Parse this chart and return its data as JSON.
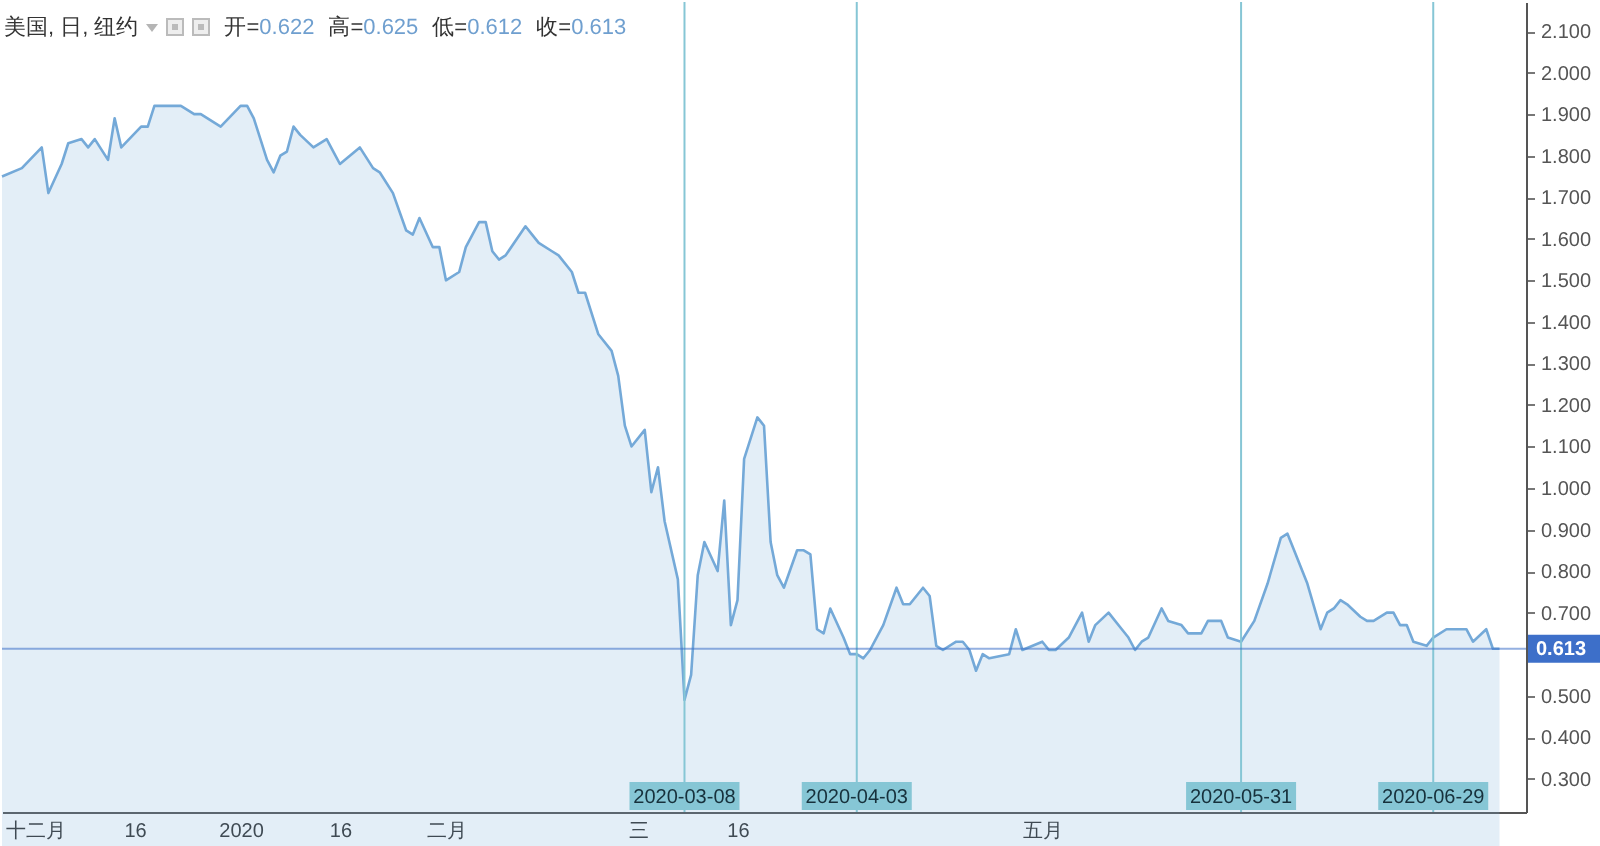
{
  "chart_data": {
    "type": "area",
    "title": "美国, 日, 纽约",
    "annotations": [
      "开=0.622",
      "高=0.625",
      "低=0.612",
      "收=0.613"
    ],
    "x": [
      "2019-11-26",
      "2019-11-29",
      "2019-12-02",
      "2019-12-03",
      "2019-12-05",
      "2019-12-06",
      "2019-12-08",
      "2019-12-09",
      "2019-12-10",
      "2019-12-12",
      "2019-12-13",
      "2019-12-14",
      "2019-12-17",
      "2019-12-18",
      "2019-12-19",
      "2019-12-21",
      "2019-12-23",
      "2019-12-25",
      "2019-12-26",
      "2019-12-29",
      "2020-01-01",
      "2020-01-02",
      "2020-01-03",
      "2020-01-05",
      "2020-01-06",
      "2020-01-07",
      "2020-01-08",
      "2020-01-09",
      "2020-01-10",
      "2020-01-12",
      "2020-01-14",
      "2020-01-15",
      "2020-01-16",
      "2020-01-19",
      "2020-01-21",
      "2020-01-22",
      "2020-01-24",
      "2020-01-26",
      "2020-01-27",
      "2020-01-28",
      "2020-01-30",
      "2020-01-31",
      "2020-02-01",
      "2020-02-03",
      "2020-02-04",
      "2020-02-06",
      "2020-02-07",
      "2020-02-08",
      "2020-02-09",
      "2020-02-10",
      "2020-02-13",
      "2020-02-14",
      "2020-02-15",
      "2020-02-17",
      "2020-02-18",
      "2020-02-20",
      "2020-02-21",
      "2020-02-22",
      "2020-02-24",
      "2020-02-26",
      "2020-02-27",
      "2020-02-28",
      "2020-02-29",
      "2020-03-02",
      "2020-03-03",
      "2020-03-04",
      "2020-03-05",
      "2020-03-07",
      "2020-03-08",
      "2020-03-09",
      "2020-03-10",
      "2020-03-11",
      "2020-03-13",
      "2020-03-14",
      "2020-03-15",
      "2020-03-16",
      "2020-03-17",
      "2020-03-19",
      "2020-03-20",
      "2020-03-21",
      "2020-03-22",
      "2020-03-23",
      "2020-03-25",
      "2020-03-26",
      "2020-03-27",
      "2020-03-28",
      "2020-03-29",
      "2020-03-30",
      "2020-04-01",
      "2020-04-02",
      "2020-04-03",
      "2020-04-04",
      "2020-04-05",
      "2020-04-07",
      "2020-04-09",
      "2020-04-10",
      "2020-04-11",
      "2020-04-13",
      "2020-04-14",
      "2020-04-15",
      "2020-04-16",
      "2020-04-18",
      "2020-04-19",
      "2020-04-20",
      "2020-04-21",
      "2020-04-22",
      "2020-04-23",
      "2020-04-26",
      "2020-04-27",
      "2020-04-28",
      "2020-05-01",
      "2020-05-02",
      "2020-05-03",
      "2020-05-05",
      "2020-05-07",
      "2020-05-08",
      "2020-05-09",
      "2020-05-11",
      "2020-05-13",
      "2020-05-14",
      "2020-05-15",
      "2020-05-16",
      "2020-05-17",
      "2020-05-19",
      "2020-05-20",
      "2020-05-22",
      "2020-05-23",
      "2020-05-25",
      "2020-05-26",
      "2020-05-28",
      "2020-05-29",
      "2020-05-31",
      "2020-06-02",
      "2020-06-04",
      "2020-06-06",
      "2020-06-07",
      "2020-06-08",
      "2020-06-10",
      "2020-06-12",
      "2020-06-13",
      "2020-06-14",
      "2020-06-15",
      "2020-06-16",
      "2020-06-18",
      "2020-06-19",
      "2020-06-20",
      "2020-06-22",
      "2020-06-23",
      "2020-06-24",
      "2020-06-25",
      "2020-06-26",
      "2020-06-28",
      "2020-06-29",
      "2020-07-01",
      "2020-07-02",
      "2020-07-04",
      "2020-07-05",
      "2020-07-07",
      "2020-07-08",
      "2020-07-09"
    ],
    "series": [
      {
        "color": "#74a9d8",
        "values": [
          1.75,
          1.77,
          1.82,
          1.71,
          1.78,
          1.83,
          1.84,
          1.82,
          1.84,
          1.79,
          1.89,
          1.82,
          1.87,
          1.87,
          1.92,
          1.92,
          1.92,
          1.9,
          1.9,
          1.87,
          1.92,
          1.92,
          1.89,
          1.79,
          1.76,
          1.8,
          1.81,
          1.87,
          1.85,
          1.82,
          1.84,
          1.81,
          1.78,
          1.82,
          1.77,
          1.76,
          1.71,
          1.62,
          1.61,
          1.65,
          1.58,
          1.58,
          1.5,
          1.52,
          1.58,
          1.64,
          1.64,
          1.57,
          1.55,
          1.56,
          1.63,
          1.61,
          1.59,
          1.57,
          1.56,
          1.52,
          1.47,
          1.47,
          1.37,
          1.33,
          1.27,
          1.15,
          1.1,
          1.14,
          0.99,
          1.05,
          0.92,
          0.78,
          0.49,
          0.55,
          0.79,
          0.87,
          0.8,
          0.97,
          0.67,
          0.73,
          1.07,
          1.17,
          1.15,
          0.87,
          0.79,
          0.76,
          0.85,
          0.85,
          0.84,
          0.66,
          0.65,
          0.71,
          0.64,
          0.6,
          0.6,
          0.59,
          0.61,
          0.67,
          0.76,
          0.72,
          0.72,
          0.76,
          0.74,
          0.62,
          0.61,
          0.63,
          0.63,
          0.61,
          0.56,
          0.6,
          0.59,
          0.6,
          0.66,
          0.61,
          0.63,
          0.61,
          0.61,
          0.64,
          0.7,
          0.63,
          0.67,
          0.7,
          0.66,
          0.64,
          0.61,
          0.63,
          0.64,
          0.71,
          0.68,
          0.67,
          0.65,
          0.65,
          0.68,
          0.68,
          0.64,
          0.63,
          0.68,
          0.77,
          0.88,
          0.89,
          0.85,
          0.77,
          0.66,
          0.7,
          0.71,
          0.73,
          0.72,
          0.69,
          0.68,
          0.68,
          0.7,
          0.7,
          0.67,
          0.67,
          0.63,
          0.62,
          0.64,
          0.66,
          0.66,
          0.66,
          0.63,
          0.66,
          0.613,
          0.613
        ]
      }
    ],
    "xlim": [
      "2019-11-26",
      "2020-07-13"
    ],
    "xticks": [
      {
        "value": "2019-12-01",
        "label": "十二月"
      },
      {
        "value": "2019-12-16",
        "label": "16"
      },
      {
        "value": "2020-01-01",
        "label": "2020"
      },
      {
        "value": "2020-01-16",
        "label": "16"
      },
      {
        "value": "2020-02-01",
        "label": "二月"
      },
      {
        "value": "2020-03-01",
        "label": "三"
      },
      {
        "value": "2020-03-16",
        "label": "16"
      },
      {
        "value": "2020-05-01",
        "label": "五月"
      }
    ],
    "ylim": [
      0.22,
      2.17
    ],
    "yticks": [
      {
        "value": 0.3,
        "label": "0.300"
      },
      {
        "value": 0.4,
        "label": "0.400"
      },
      {
        "value": 0.5,
        "label": "0.500"
      },
      {
        "value": 0.7,
        "label": "0.700"
      },
      {
        "value": 0.8,
        "label": "0.800"
      },
      {
        "value": 0.9,
        "label": "0.900"
      },
      {
        "value": 1.0,
        "label": "1.000"
      },
      {
        "value": 1.1,
        "label": "1.100"
      },
      {
        "value": 1.2,
        "label": "1.200"
      },
      {
        "value": 1.3,
        "label": "1.300"
      },
      {
        "value": 1.4,
        "label": "1.400"
      },
      {
        "value": 1.5,
        "label": "1.500"
      },
      {
        "value": 1.6,
        "label": "1.600"
      },
      {
        "value": 1.7,
        "label": "1.700"
      },
      {
        "value": 1.8,
        "label": "1.800"
      },
      {
        "value": 1.9,
        "label": "1.900"
      },
      {
        "value": 2.0,
        "label": "2.000"
      },
      {
        "value": 2.1,
        "label": "2.100"
      }
    ],
    "ref_lines": [
      {
        "axis": "x",
        "value": "2020-03-08",
        "label": "2020-03-08",
        "color": "#86c6d5"
      },
      {
        "axis": "x",
        "value": "2020-04-03",
        "label": "2020-04-03",
        "color": "#86c6d5"
      },
      {
        "axis": "x",
        "value": "2020-05-31",
        "label": "2020-05-31",
        "color": "#86c6d5"
      },
      {
        "axis": "x",
        "value": "2020-06-29",
        "label": "2020-06-29",
        "color": "#86c6d5"
      },
      {
        "axis": "y",
        "value": 0.613,
        "label": "0.613",
        "color": "#3d6fc9"
      }
    ],
    "grid": false
  }
}
